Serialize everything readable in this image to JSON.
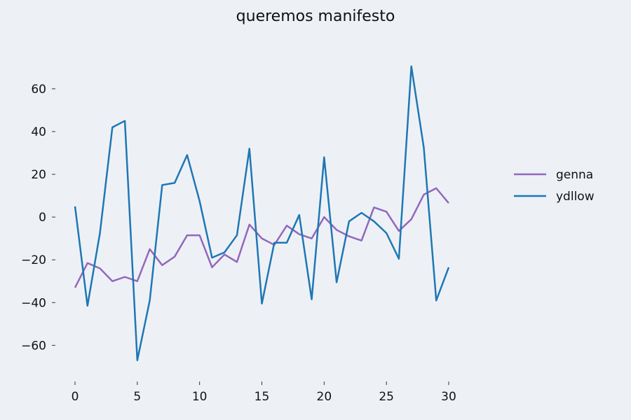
{
  "chart_data": {
    "type": "line",
    "title": "queremos manifesto",
    "xlabel": "",
    "ylabel": "",
    "xlim": [
      0,
      30
    ],
    "ylim": [
      -72,
      76
    ],
    "x_ticks": [
      0,
      5,
      10,
      15,
      20,
      25,
      30
    ],
    "y_ticks": [
      -60,
      -40,
      -20,
      0,
      20,
      40,
      60
    ],
    "grid": false,
    "legend_position": "right",
    "x": [
      0,
      1,
      2,
      3,
      4,
      5,
      6,
      7,
      8,
      9,
      10,
      11,
      12,
      13,
      14,
      15,
      16,
      17,
      18,
      19,
      20,
      21,
      22,
      23,
      24,
      25,
      26,
      27,
      28,
      29,
      30
    ],
    "series": [
      {
        "name": "genna",
        "color": "#9467bd",
        "values": [
          -33,
          -21.5,
          -24,
          -30,
          -28,
          -30,
          -15,
          -22.5,
          -18.5,
          -8.5,
          -8.5,
          -23.5,
          -17.5,
          -21,
          -3.5,
          -10,
          -13,
          -4,
          -8,
          -10,
          0,
          -6,
          -9,
          -11,
          4.5,
          2.5,
          -6.5,
          -1,
          10.5,
          13.5,
          6.5
        ]
      },
      {
        "name": "ydllow",
        "color": "#1f77b4",
        "values": [
          5,
          -41.5,
          -7.5,
          42,
          45,
          -67,
          -39,
          15,
          16,
          29,
          7.5,
          -19,
          -16.5,
          -8.5,
          32,
          -40.5,
          -12,
          -12,
          1,
          -38.5,
          28,
          -30.5,
          -2,
          2,
          -2,
          -7.5,
          -19.5,
          70.5,
          32.5,
          -39,
          -23.5
        ]
      }
    ]
  }
}
